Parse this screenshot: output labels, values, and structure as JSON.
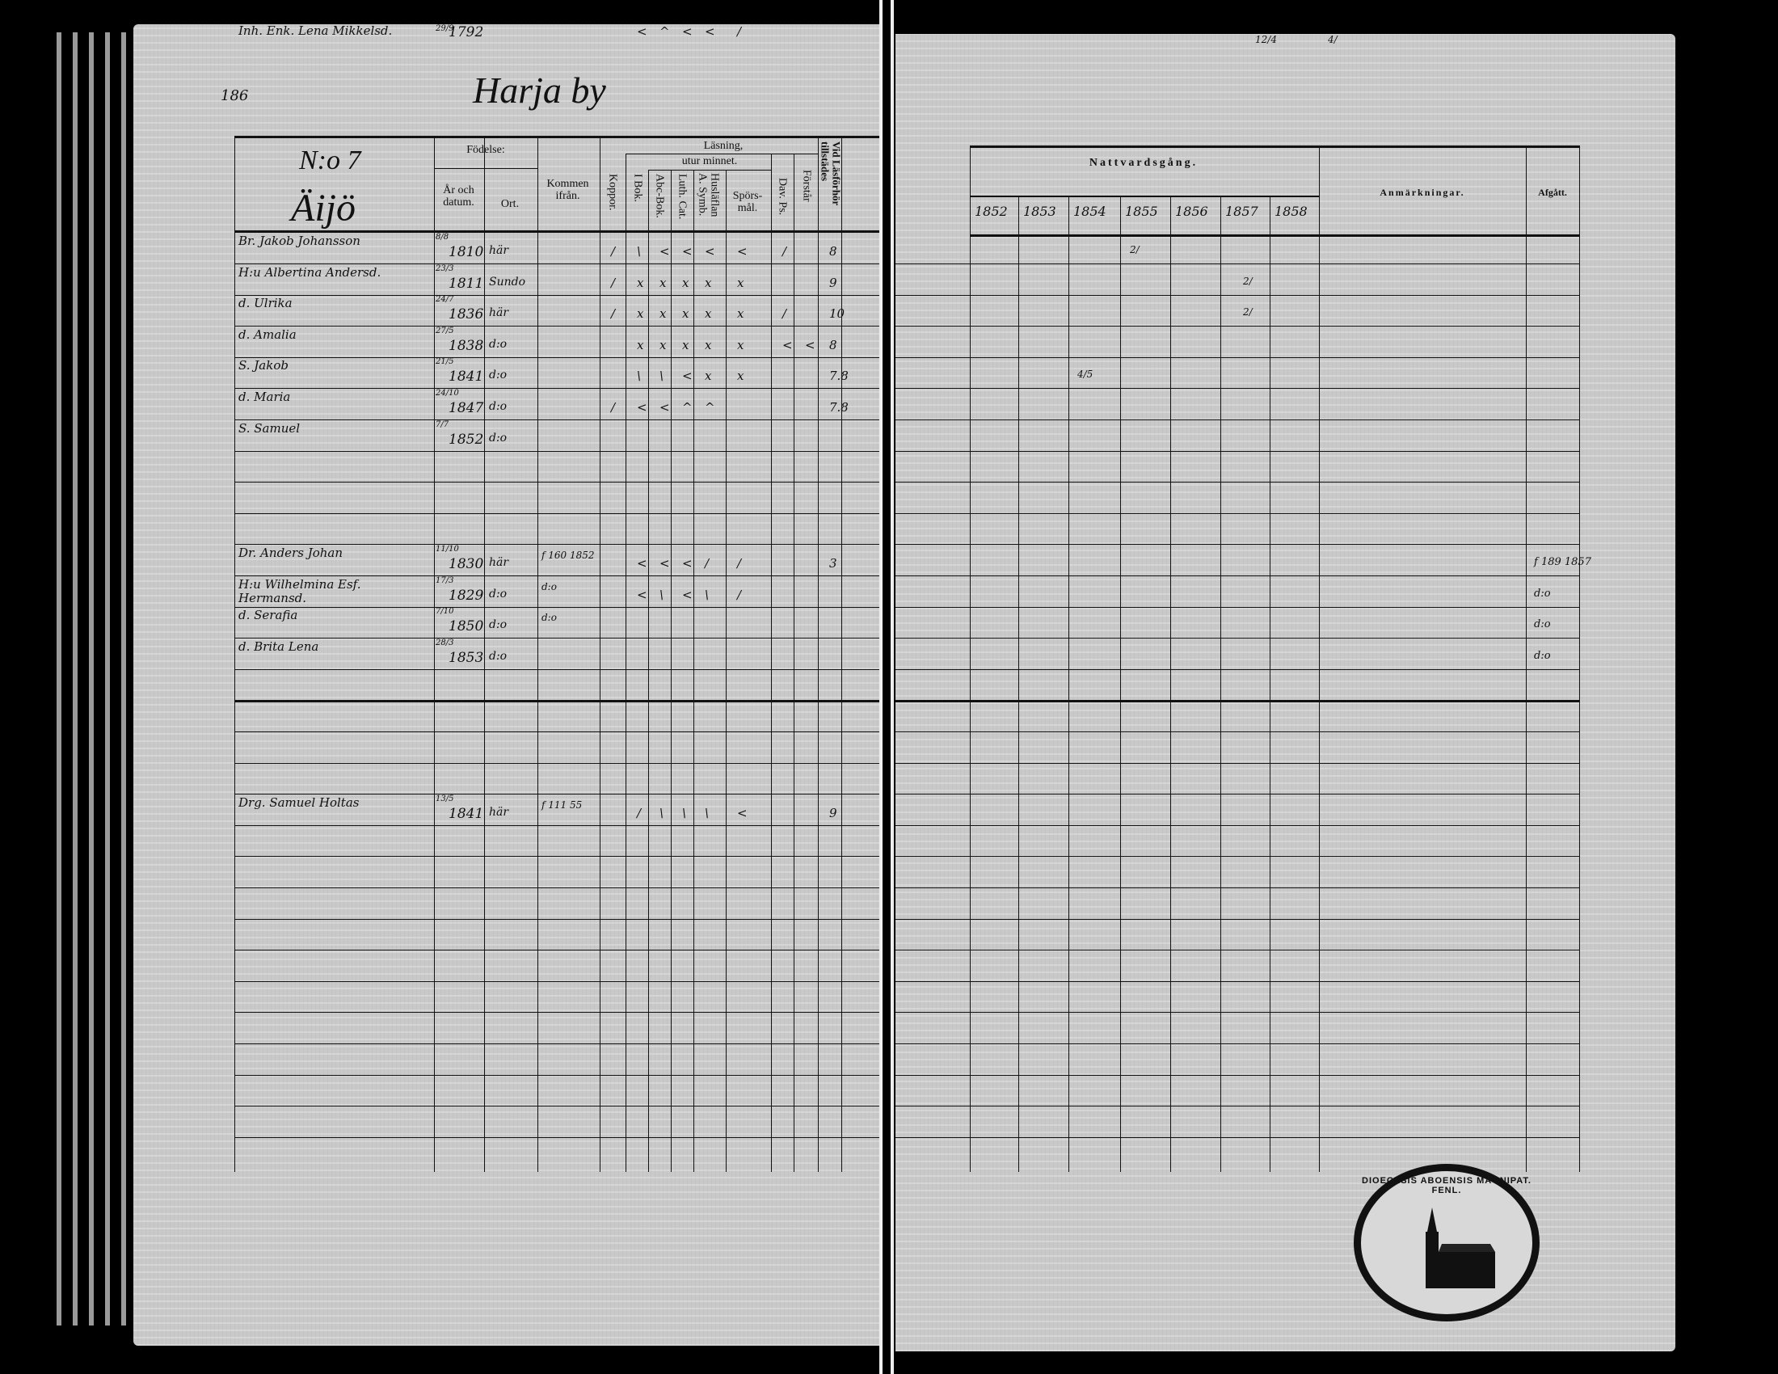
{
  "left_page": {
    "page_number": "186",
    "title": "Harja by",
    "household_number": "N:o 7",
    "farm_name": "Äijö",
    "headers": {
      "fodelse": "Födelse:",
      "ar_och_datum": "År och datum.",
      "ort": "Ort.",
      "kommen_ifran": "Kommen ifrån.",
      "koppor": "Koppor.",
      "lasning": "Läsning,",
      "utur_minnet": "utur minnet.",
      "i_bok": "I Bok.",
      "abc_bok": "Abc-Bok.",
      "luth_cat": "Luth. Cat.",
      "huslaflan": "Husläflan A. Symb.",
      "sporsmal": "Spörs-mål.",
      "dav_ps": "Dav. Ps.",
      "forstar": "Förstår",
      "vid_lasforhor": "Vid Läsförhör tillstädes"
    },
    "entries": [
      {
        "name": "Br. Jakob Johansson",
        "date": "8/8",
        "year": "1810",
        "place": "här",
        "from": "",
        "marks": [
          "/",
          "\\",
          "<",
          "<",
          "<",
          "<",
          "/",
          "",
          "8"
        ]
      },
      {
        "name": "H:u Albertina Andersd.",
        "date": "23/3",
        "year": "1811",
        "place": "Sundo",
        "from": "",
        "marks": [
          "/",
          "x",
          "x",
          "x",
          "x",
          "x",
          "",
          "",
          "9"
        ]
      },
      {
        "name": "d. Ulrika",
        "date": "24/7",
        "year": "1836",
        "place": "här",
        "from": "",
        "marks": [
          "/",
          "x",
          "x",
          "x",
          "x",
          "x",
          "/",
          "",
          "10"
        ]
      },
      {
        "name": "d. Amalia",
        "date": "27/5",
        "year": "1838",
        "place": "d:o",
        "from": "",
        "marks": [
          "",
          "x",
          "x",
          "x",
          "x",
          "x",
          "<",
          "<",
          "8"
        ]
      },
      {
        "name": "S. Jakob",
        "date": "21/5",
        "year": "1841",
        "place": "d:o",
        "from": "",
        "marks": [
          "",
          "\\",
          "\\",
          "<",
          "x",
          "x",
          "",
          "",
          "7.8"
        ]
      },
      {
        "name": "d. Maria",
        "date": "24/10",
        "year": "1847",
        "place": "d:o",
        "from": "",
        "marks": [
          "/",
          "<",
          "<",
          "^",
          "^",
          "",
          "",
          "",
          "7.8"
        ]
      },
      {
        "name": "S. Samuel",
        "date": "7/7",
        "year": "1852",
        "place": "d:o",
        "from": "",
        "marks": [
          "",
          "",
          "",
          "",
          "",
          "",
          "",
          "",
          ""
        ]
      },
      {
        "name": "Dr. Anders Johan",
        "date": "11/10",
        "year": "1830",
        "place": "här",
        "from": "f 160 1852",
        "marks": [
          "",
          "<",
          "<",
          "<",
          "/",
          "/",
          "",
          "",
          "3"
        ]
      },
      {
        "name": "H:u Wilhelmina Esf. Hermansd.",
        "date": "17/3",
        "year": "1829",
        "place": "d:o",
        "from": "d:o",
        "marks": [
          "",
          "<",
          "\\",
          "<",
          "\\",
          "/",
          "",
          "",
          ""
        ]
      },
      {
        "name": "d. Serafia",
        "date": "7/10",
        "year": "1850",
        "place": "d:o",
        "from": "d:o",
        "marks": [
          "",
          "",
          "",
          "",
          "",
          "",
          "",
          "",
          ""
        ]
      },
      {
        "name": "d. Brita Lena",
        "date": "28/3",
        "year": "1853",
        "place": "d:o",
        "from": "",
        "marks": [
          "",
          "",
          "",
          "",
          "",
          "",
          "",
          "",
          ""
        ]
      },
      {
        "name": "Drg. Samuel Holtas",
        "date": "13/5",
        "year": "1841",
        "place": "här",
        "from": "f 111 55",
        "marks": [
          "",
          "/",
          "\\",
          "\\",
          "\\",
          "<",
          "",
          "",
          "9"
        ]
      },
      {
        "name": "Inh. Enk. Lena Mikkelsd.",
        "date": "29/9",
        "year": "1792",
        "place": "",
        "from": "",
        "marks": [
          "",
          "<",
          "^",
          "<",
          "<",
          "/",
          "",
          "",
          ""
        ]
      }
    ]
  },
  "right_page": {
    "nattvardsgang": "Nattvardsgång.",
    "years": [
      "1852",
      "1853",
      "1854",
      "1855",
      "1856",
      "1857",
      "1858"
    ],
    "anmarkningar": "Anmärkningar.",
    "afgatt": "Afgått.",
    "afgatt_notes": [
      "f 189 1857",
      "d:o",
      "d:o",
      "d:o"
    ],
    "misc_marks": [
      "2/",
      "2/",
      "2/",
      "4/5",
      "12/4",
      "4/"
    ]
  },
  "stamp": {
    "text": "DIOECESIS ABOENSIS MAGNIPAT. FENL."
  },
  "colors": {
    "background": "#000000",
    "paper": "#c9c9c9",
    "ink": "#111111"
  }
}
